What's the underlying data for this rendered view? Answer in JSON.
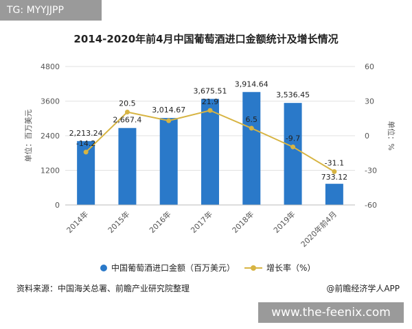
{
  "watermark_top": "TG: MYYJJPP",
  "watermark_bottom": "www.the-feenix.com",
  "source_text": "资料来源：中国海关总署、前瞻产业研究院整理",
  "brand_text": "@前瞻经济学人APP",
  "colors": {
    "bar": "#2a79c9",
    "line": "#d7b442",
    "grid": "#e2e2e2",
    "axis_text": "#555555"
  },
  "chart_data": {
    "type": "bar",
    "title": "2014-2020年前4月中国葡萄酒进口金额统计及增长情况",
    "categories": [
      "2014年",
      "2015年",
      "2016年",
      "2017年",
      "2018年",
      "2019年",
      "2020年前4月"
    ],
    "series": [
      {
        "name": "中国葡萄酒进口金额（百万美元）",
        "type": "bar",
        "axis": "left",
        "values": [
          2213.24,
          2667.4,
          3014.67,
          3675.51,
          3914.64,
          3536.45,
          733.12
        ],
        "labels": [
          "2,213.24",
          "2,667.4",
          "3,014.67",
          "3,675.51",
          "3,914.64",
          "3,536.45",
          "733.12"
        ]
      },
      {
        "name": "增长率（%）",
        "type": "line",
        "axis": "right",
        "values": [
          -14.2,
          20.5,
          13.0,
          21.9,
          6.5,
          -9.7,
          -31.1
        ],
        "labels": [
          "-14.2",
          "20.5",
          "",
          "21.9",
          "6.5",
          "-9.7",
          "-31.1"
        ]
      }
    ],
    "ylabel": "单位：百万美元",
    "y2label": "单位：%",
    "ylim": [
      0,
      4800
    ],
    "y2lim": [
      -60,
      60
    ],
    "yticks": [
      "0",
      "1200",
      "2400",
      "3600",
      "4800"
    ],
    "y2ticks": [
      "-60",
      "-30",
      "0",
      "30",
      "60"
    ],
    "grid": true,
    "legend": "bottom"
  }
}
